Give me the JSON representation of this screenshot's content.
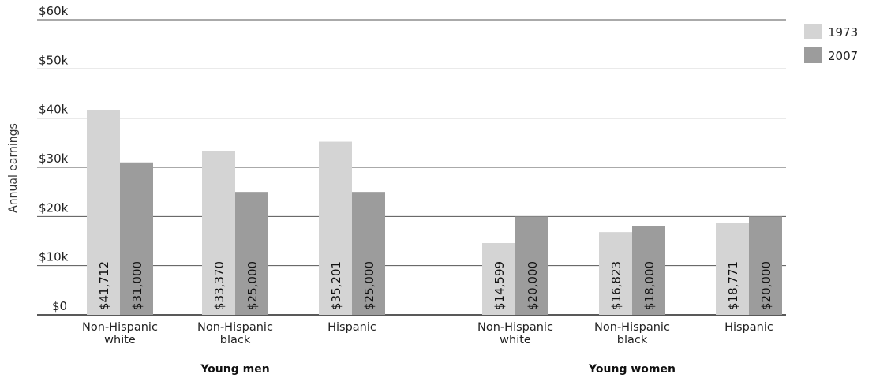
{
  "chart_data": {
    "type": "bar",
    "title": "",
    "xlabel": "",
    "ylabel": "Annual earnings",
    "ylim": [
      0,
      60000
    ],
    "y_ticks": [
      {
        "value": 0,
        "label": "$0"
      },
      {
        "value": 10000,
        "label": "$10k"
      },
      {
        "value": 20000,
        "label": "$20k"
      },
      {
        "value": 30000,
        "label": "$30k"
      },
      {
        "value": 40000,
        "label": "$40k"
      },
      {
        "value": 50000,
        "label": "$50k"
      },
      {
        "value": 60000,
        "label": "$60k"
      }
    ],
    "grid": true,
    "legend_position": "top-right",
    "groups": [
      {
        "name": "Young men",
        "categories": [
          [
            "Non-Hispanic",
            "white"
          ],
          [
            "Non-Hispanic",
            "black"
          ],
          [
            "Hispanic"
          ]
        ]
      },
      {
        "name": "Young women",
        "categories": [
          [
            "Non-Hispanic",
            "white"
          ],
          [
            "Non-Hispanic",
            "black"
          ],
          [
            "Hispanic"
          ]
        ]
      }
    ],
    "series": [
      {
        "name": "1973",
        "color": "#d4d4d4",
        "values": [
          41712,
          33370,
          35201,
          14599,
          16823,
          18771
        ],
        "labels": [
          "$41,712",
          "$33,370",
          "$35,201",
          "$14,599",
          "$16,823",
          "$18,771"
        ]
      },
      {
        "name": "2007",
        "color": "#9c9c9c",
        "values": [
          31000,
          25000,
          25000,
          20000,
          18000,
          20000
        ],
        "labels": [
          "$31,000",
          "$25,000",
          "$25,000",
          "$20,000",
          "$18,000",
          "$20,000"
        ]
      }
    ]
  }
}
